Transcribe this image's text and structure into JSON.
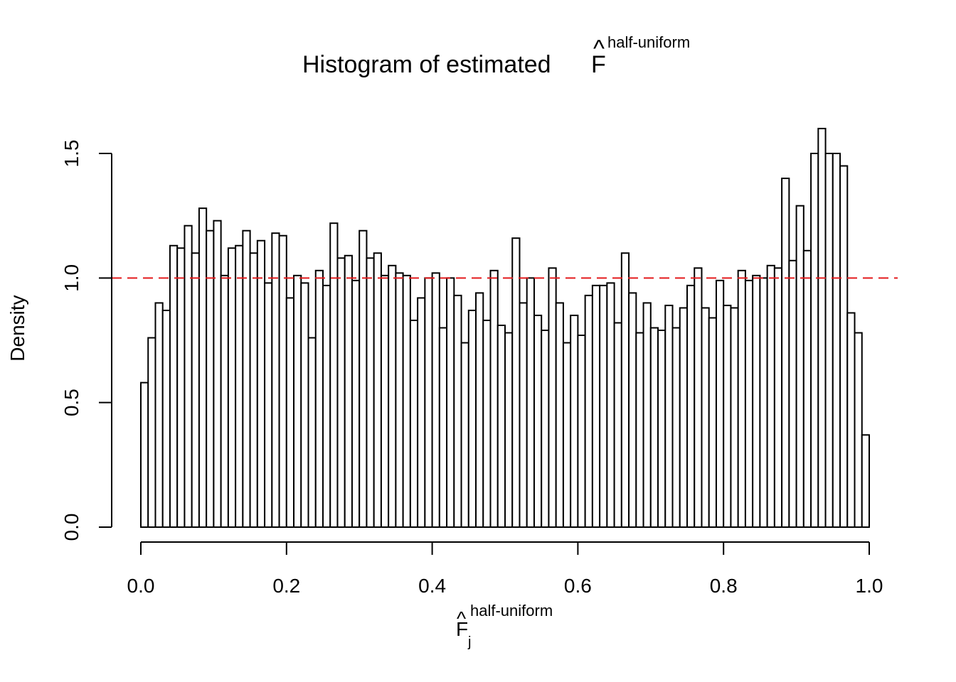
{
  "chart_data": {
    "type": "bar",
    "title": {
      "main": "Histogram of estimated ",
      "symbol": "F",
      "hat": "^",
      "superscript": "half-uniform"
    },
    "xlabel": {
      "symbol": "F",
      "hat": "^",
      "subscript": "j",
      "superscript": "half-uniform"
    },
    "ylabel": "Density",
    "xlim": [
      0.0,
      1.0
    ],
    "ylim": [
      0.0,
      1.6
    ],
    "bin_width": 0.01,
    "x_ticks": [
      "0.0",
      "0.2",
      "0.4",
      "0.6",
      "0.8",
      "1.0"
    ],
    "y_ticks": [
      "0.0",
      "0.5",
      "1.0",
      "1.5"
    ],
    "reference_line": {
      "y": 1.0,
      "color": "#e31a1c",
      "style": "dashed"
    },
    "bar_fill": "#ffffff",
    "bar_edge": "#000000",
    "values": [
      0.58,
      0.76,
      0.9,
      0.87,
      1.13,
      1.12,
      1.21,
      1.1,
      1.28,
      1.19,
      1.23,
      1.01,
      1.12,
      1.13,
      1.19,
      1.1,
      1.15,
      0.98,
      1.18,
      1.17,
      0.92,
      1.01,
      0.98,
      0.76,
      1.03,
      0.97,
      1.22,
      1.08,
      1.09,
      0.99,
      1.19,
      1.08,
      1.1,
      1.01,
      1.05,
      1.02,
      1.01,
      0.83,
      0.92,
      1.0,
      1.02,
      0.8,
      1.0,
      0.93,
      0.74,
      0.87,
      0.94,
      0.83,
      1.03,
      0.81,
      0.78,
      1.16,
      0.9,
      1.0,
      0.85,
      0.79,
      1.04,
      0.9,
      0.74,
      0.85,
      0.77,
      0.93,
      0.97,
      0.97,
      0.98,
      0.82,
      1.1,
      0.94,
      0.78,
      0.9,
      0.8,
      0.79,
      0.89,
      0.8,
      0.88,
      0.97,
      1.04,
      0.88,
      0.84,
      0.99,
      0.89,
      0.88,
      1.03,
      0.99,
      1.01,
      1.0,
      1.05,
      1.04,
      1.4,
      1.07,
      1.29,
      1.11,
      1.5,
      1.6,
      1.5,
      1.5,
      1.45,
      0.86,
      0.78,
      0.37
    ]
  }
}
